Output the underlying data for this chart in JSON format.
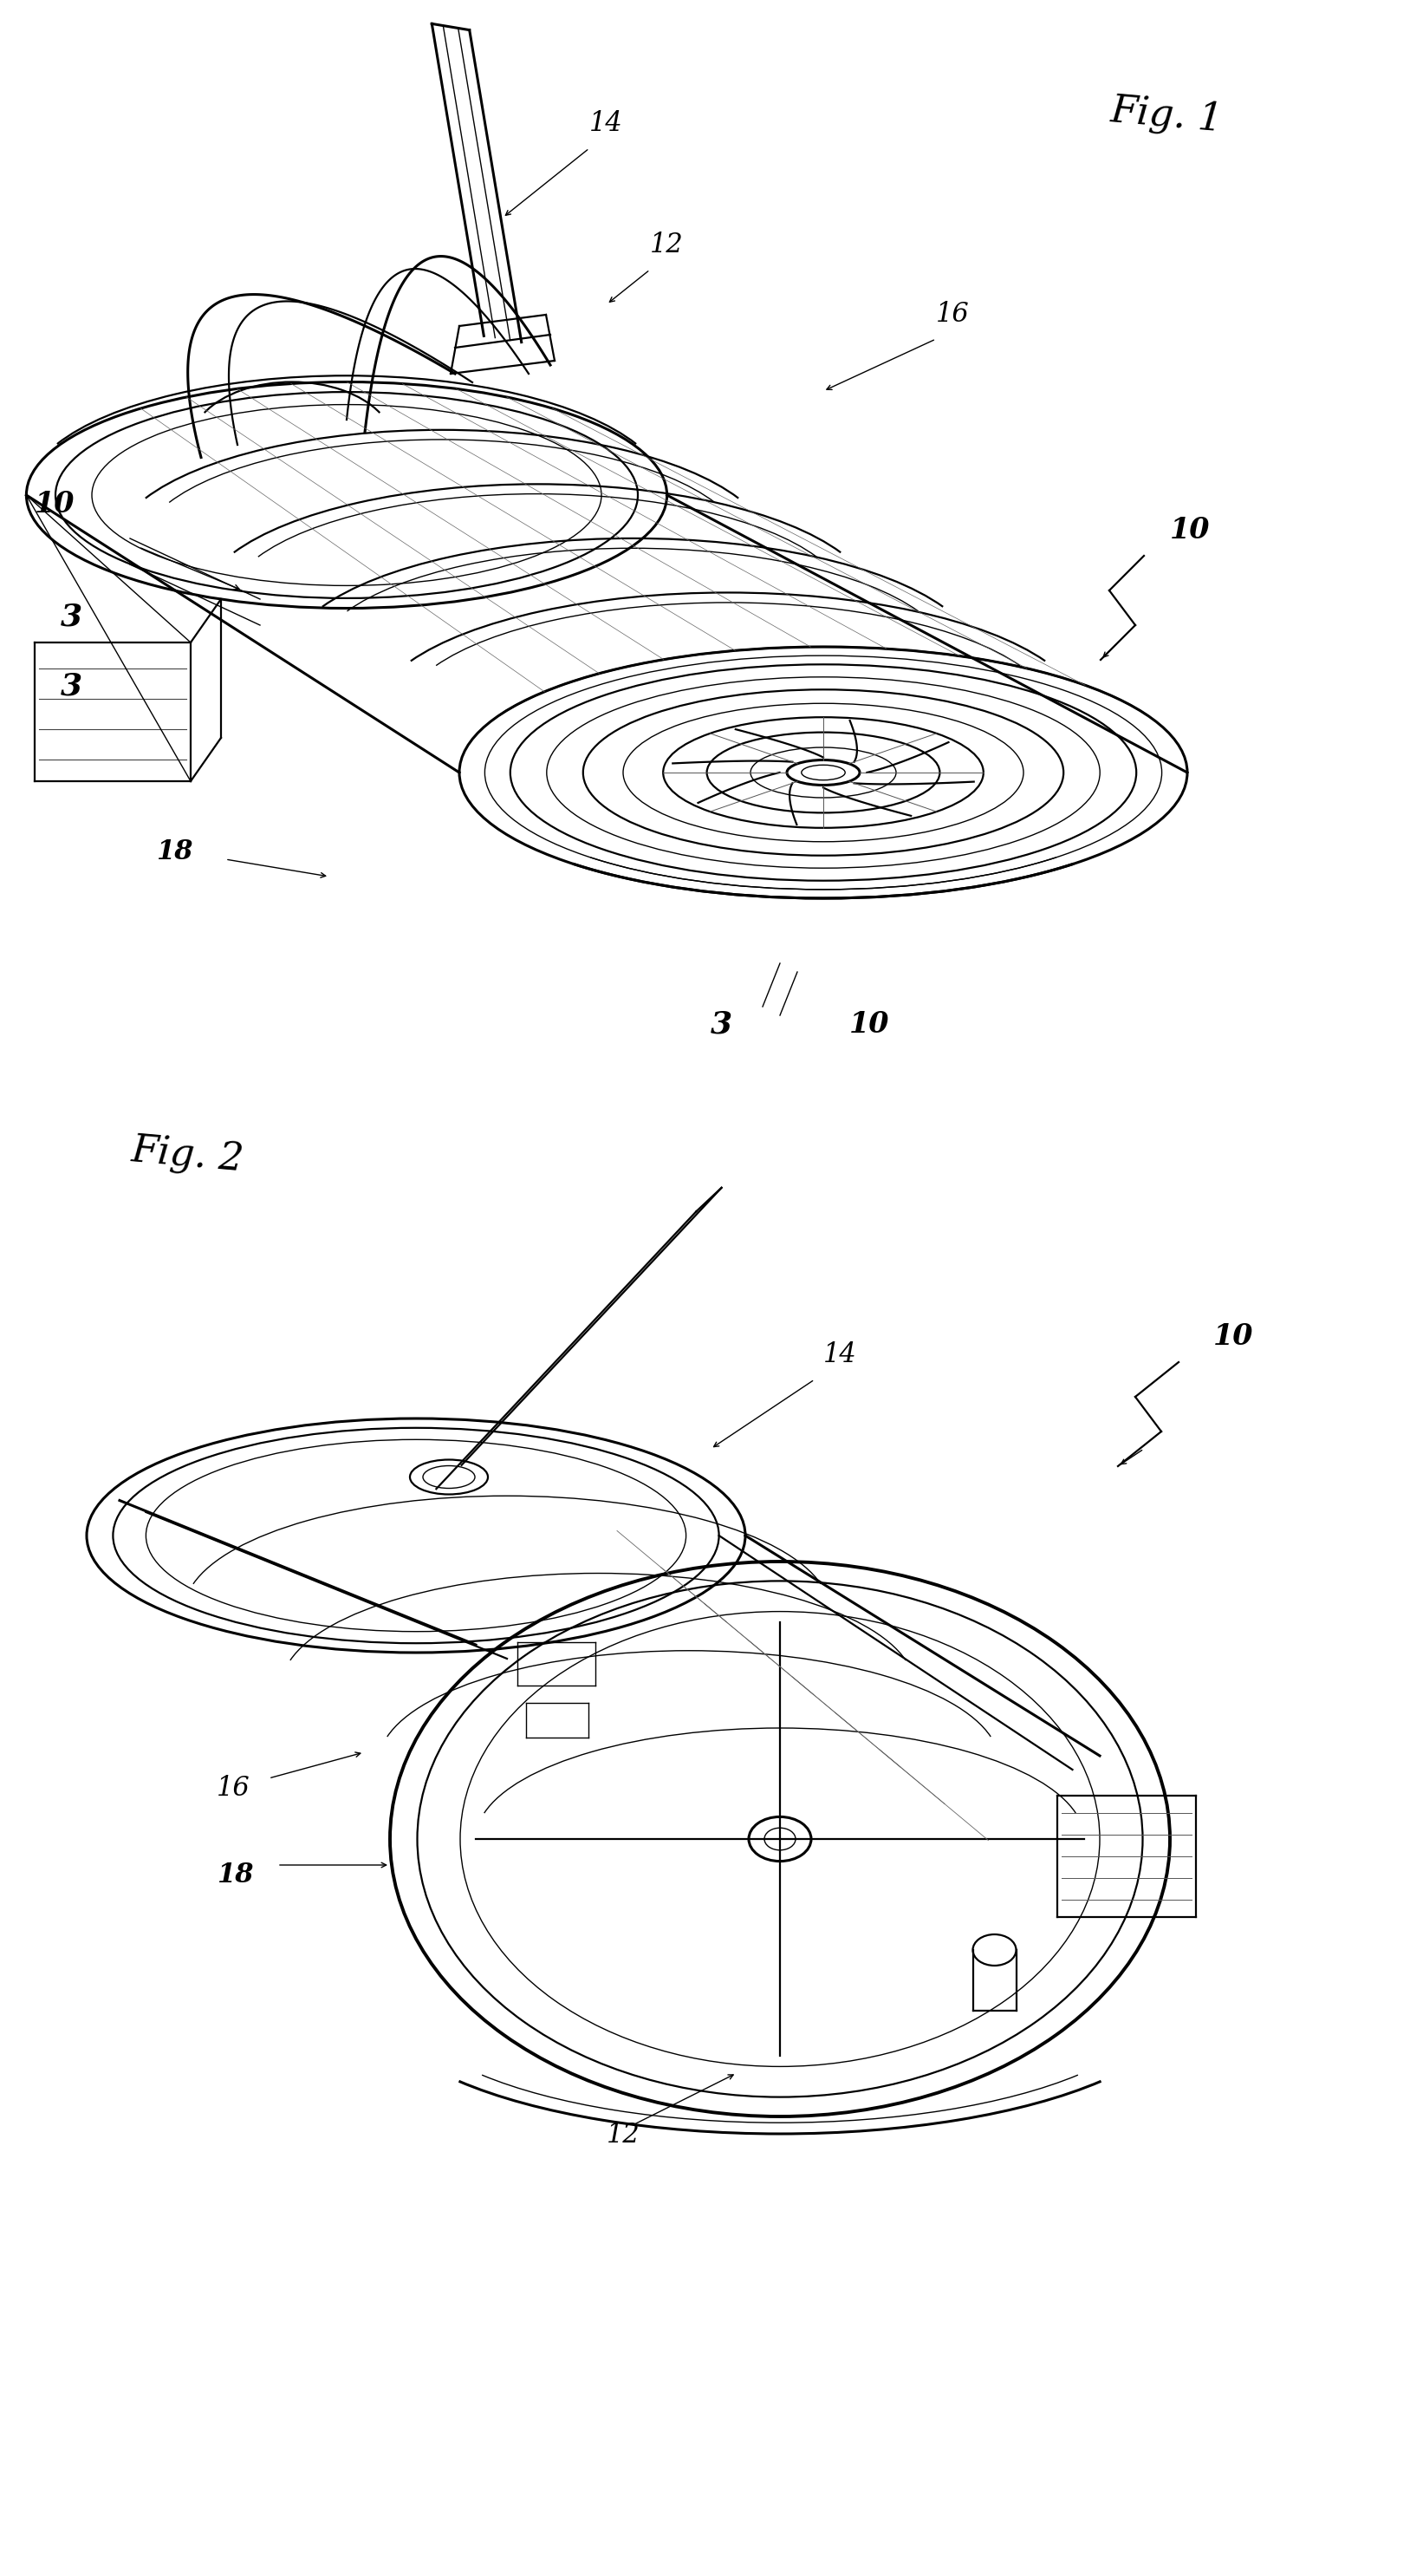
{
  "bg_color": "#ffffff",
  "line_color": "#000000",
  "fig_width": 16.42,
  "fig_height": 29.71,
  "fig1_label": "Fig. 1",
  "fig2_label": "Fig. 2",
  "annotation_fontsize": 22,
  "label_fontsize": 18
}
